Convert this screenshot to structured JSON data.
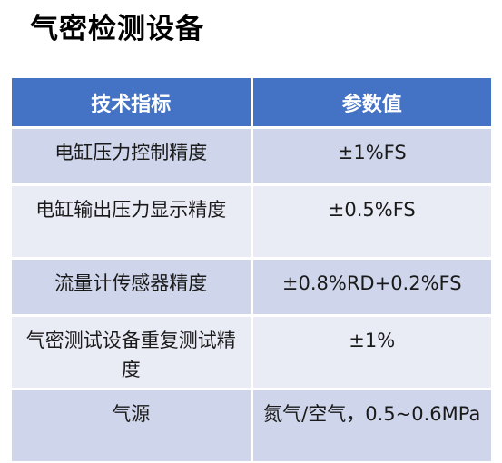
{
  "title": "气密检测设备",
  "table": {
    "headers": [
      "技术指标",
      "参数值"
    ],
    "rows": [
      {
        "name": "电缸压力控制精度",
        "value": "±1%FS"
      },
      {
        "name": "电缸输出压力显示精度",
        "value": "±0.5%FS"
      },
      {
        "name": "流量计传感器精度",
        "value": "±0.8%RD+0.2%FS"
      },
      {
        "name": "气密测试设备重复测试精度",
        "value": "±1%"
      },
      {
        "name": "气源",
        "value": "氮气/空气，0.5~0.6MPa"
      }
    ]
  },
  "colors": {
    "header_bg": "#4472c4",
    "row_dark": "#cfd5ea",
    "row_light": "#e9ebf5"
  }
}
